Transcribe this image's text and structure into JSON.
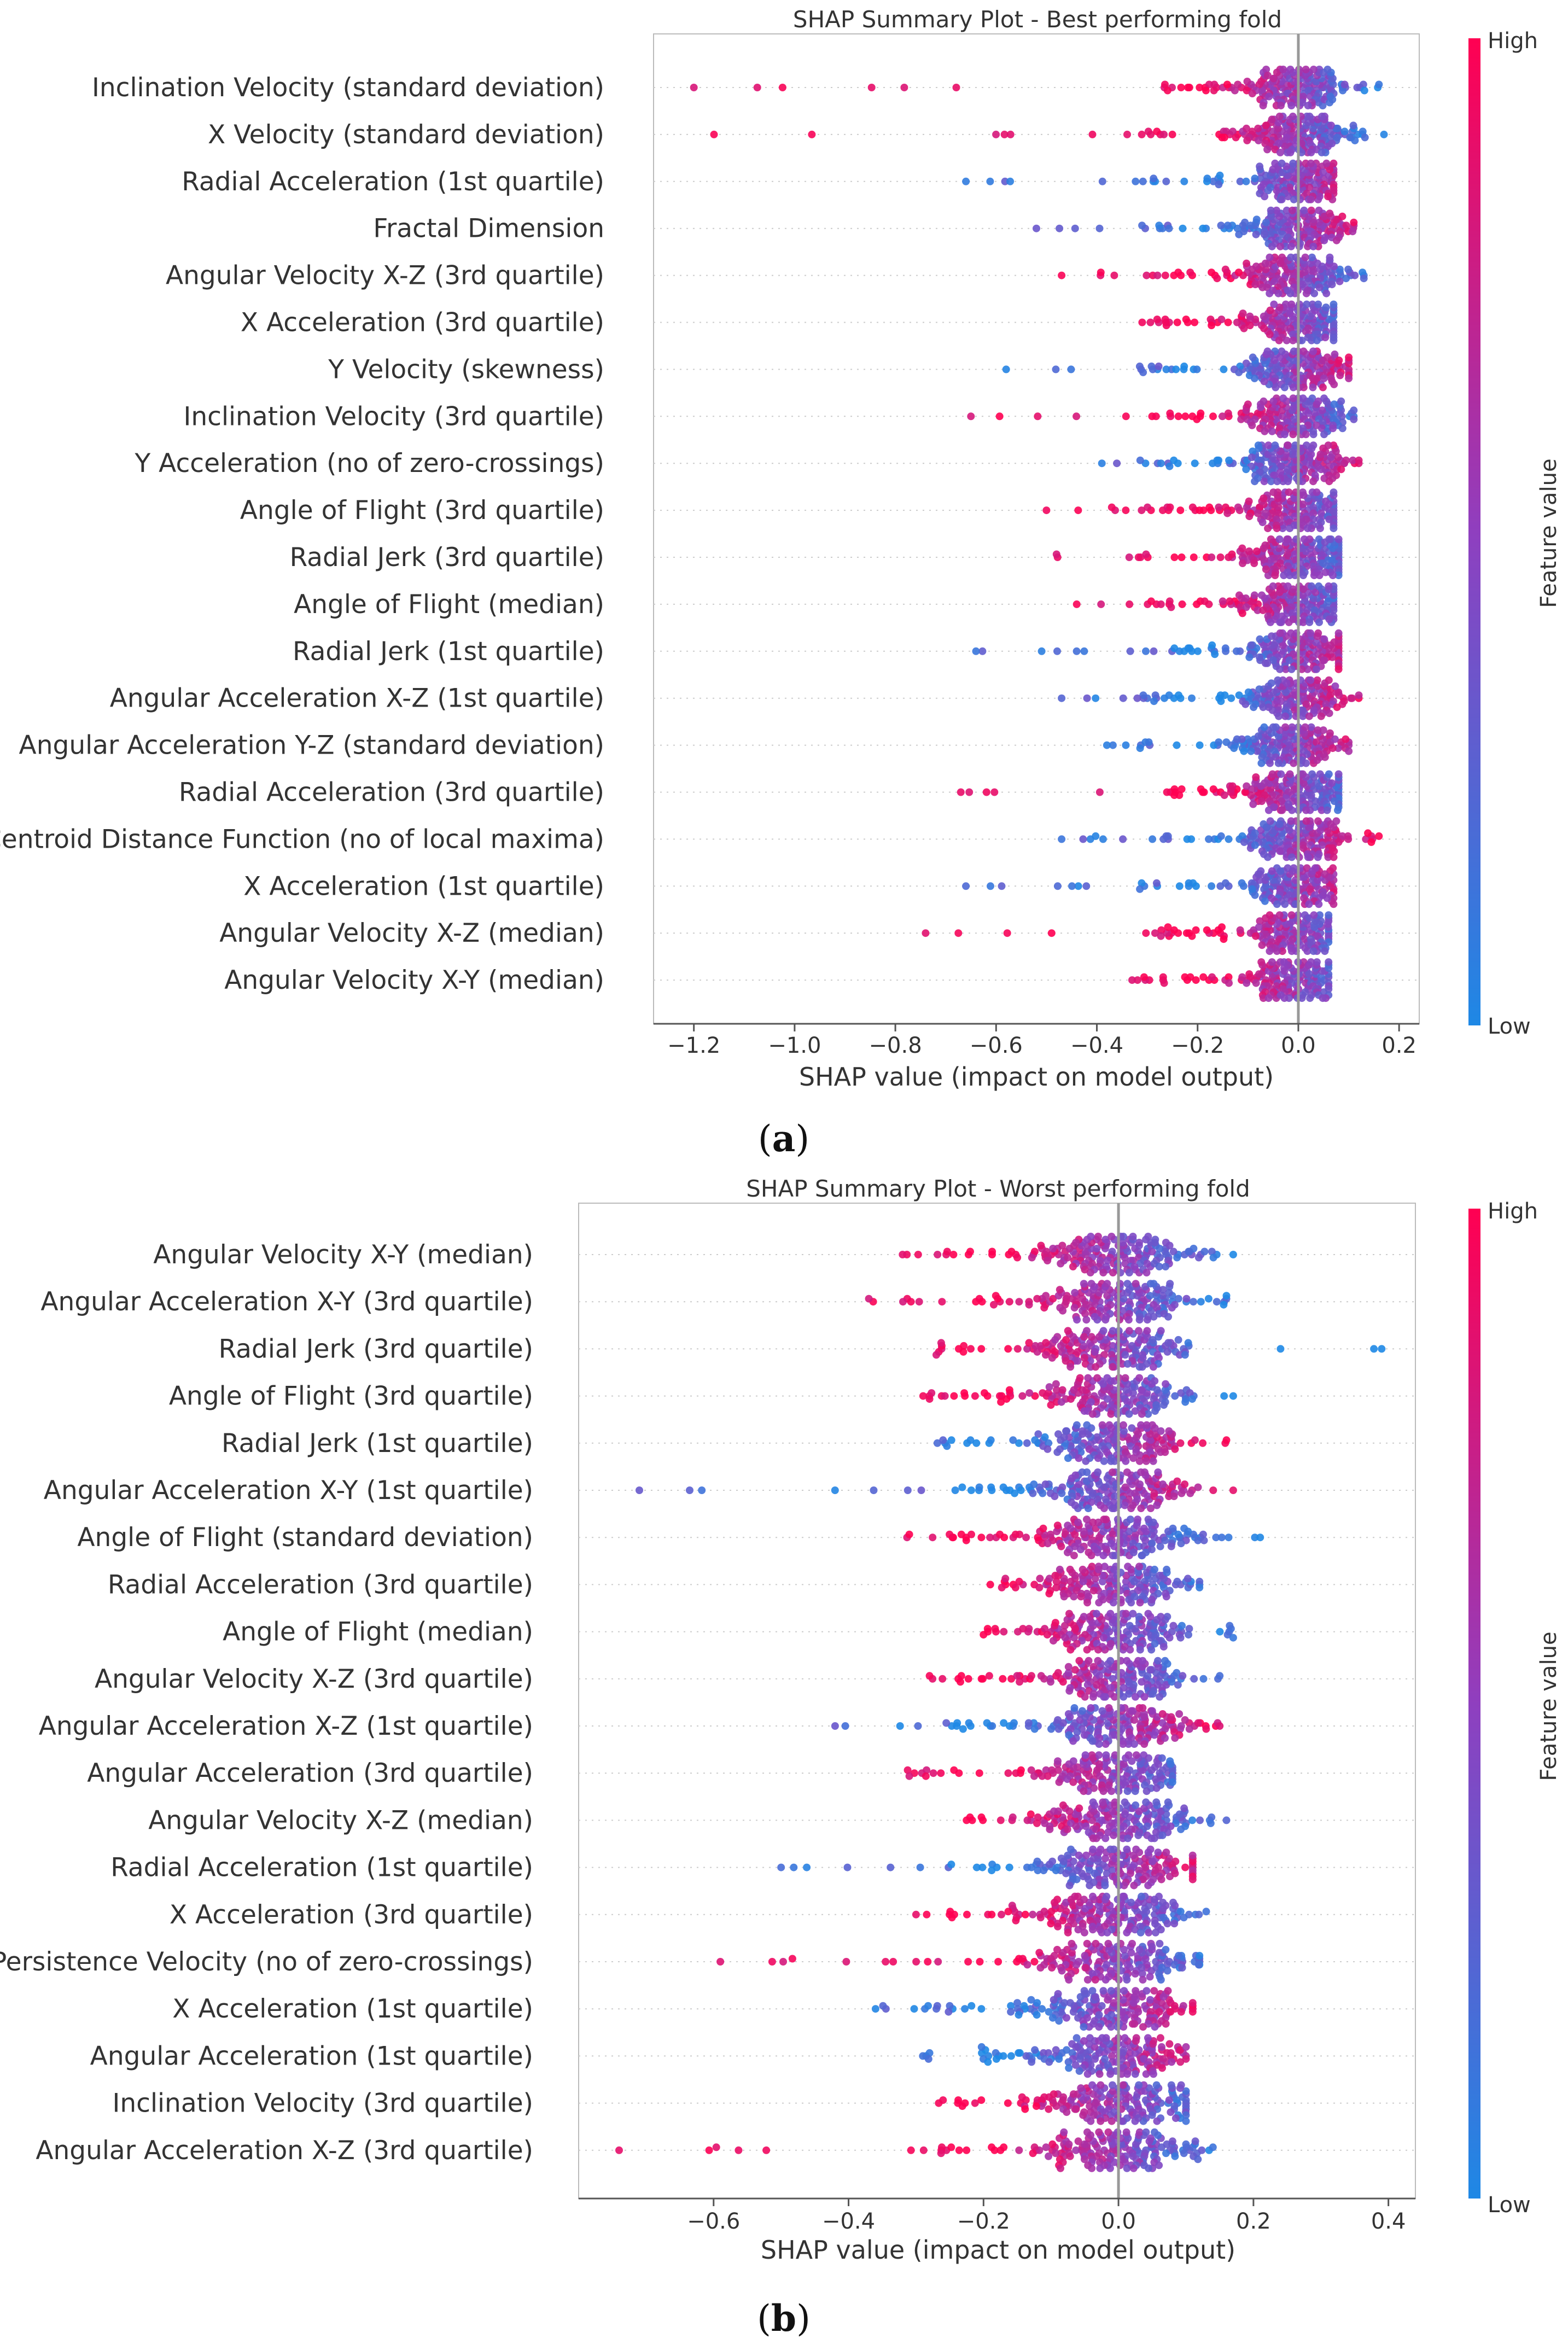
{
  "colors": {
    "low": "#1e88e5",
    "mid": "#8f3fbf",
    "high": "#ff0052",
    "zero_line": "#999999",
    "grid": "#cccccc"
  },
  "colorbar": {
    "high_label": "High",
    "low_label": "Low",
    "axis_label": "Feature value"
  },
  "panels": [
    {
      "caption_open": "(",
      "caption_letter": "a",
      "caption_close": ")",
      "chart_data": {
        "type": "scatter",
        "subtype": "shap-beeswarm",
        "title": "SHAP Summary Plot - Best performing fold",
        "xlabel": "SHAP value (impact on model output)",
        "xlim": [
          -1.28,
          0.24
        ],
        "xticks": [
          -1.2,
          -1.0,
          -0.8,
          -0.6,
          -0.4,
          -0.2,
          0.0,
          0.2
        ],
        "xtick_labels": [
          "−1.2",
          "−1.0",
          "−0.8",
          "−0.6",
          "−0.4",
          "−0.2",
          "0.0",
          "0.2"
        ],
        "features": [
          {
            "name": "Inclination Velocity (standard deviation)",
            "min": -1.2,
            "max": 0.16,
            "spread": 0.05,
            "trend": -1
          },
          {
            "name": "X Velocity (standard deviation)",
            "min": -1.16,
            "max": 0.17,
            "spread": 0.05,
            "trend": -1
          },
          {
            "name": "Radial Acceleration (1st quartile)",
            "min": -0.66,
            "max": 0.07,
            "spread": 0.045,
            "trend": 1
          },
          {
            "name": "Fractal Dimension",
            "min": -0.52,
            "max": 0.11,
            "spread": 0.05,
            "trend": 1
          },
          {
            "name": "Angular Velocity X-Z (3rd quartile)",
            "min": -0.47,
            "max": 0.13,
            "spread": 0.05,
            "trend": -1
          },
          {
            "name": "X Acceleration (3rd quartile)",
            "min": -0.31,
            "max": 0.07,
            "spread": 0.05,
            "trend": -1
          },
          {
            "name": "Y Velocity (skewness)",
            "min": -0.58,
            "max": 0.1,
            "spread": 0.05,
            "trend": 1
          },
          {
            "name": "Inclination Velocity (3rd quartile)",
            "min": -0.65,
            "max": 0.11,
            "spread": 0.05,
            "trend": -1
          },
          {
            "name": "Y Acceleration (no of zero-crossings)",
            "min": -0.39,
            "max": 0.12,
            "spread": 0.05,
            "trend": 1
          },
          {
            "name": "Angle of Flight (3rd quartile)",
            "min": -0.5,
            "max": 0.07,
            "spread": 0.05,
            "trend": -1
          },
          {
            "name": "Radial Jerk (3rd quartile)",
            "min": -0.48,
            "max": 0.08,
            "spread": 0.05,
            "trend": -1
          },
          {
            "name": "Angle of Flight (median)",
            "min": -0.44,
            "max": 0.07,
            "spread": 0.045,
            "trend": -1
          },
          {
            "name": "Radial Jerk (1st quartile)",
            "min": -0.64,
            "max": 0.08,
            "spread": 0.045,
            "trend": 1
          },
          {
            "name": "Angular Acceleration X-Z (1st quartile)",
            "min": -0.47,
            "max": 0.12,
            "spread": 0.045,
            "trend": 1
          },
          {
            "name": "Angular Acceleration Y-Z (standard deviation)",
            "min": -0.38,
            "max": 0.1,
            "spread": 0.05,
            "trend": 1
          },
          {
            "name": "Radial Acceleration (3rd quartile)",
            "min": -0.67,
            "max": 0.08,
            "spread": 0.05,
            "trend": -1
          },
          {
            "name": "Centroid Distance Function (no of local maxima)",
            "min": -0.47,
            "max": 0.16,
            "spread": 0.05,
            "trend": 1
          },
          {
            "name": "X Acceleration (1st quartile)",
            "min": -0.66,
            "max": 0.07,
            "spread": 0.045,
            "trend": 1
          },
          {
            "name": "Angular Velocity X-Z (median)",
            "min": -0.74,
            "max": 0.06,
            "spread": 0.045,
            "trend": -1
          },
          {
            "name": "Angular Velocity X-Y (median)",
            "min": -0.33,
            "max": 0.06,
            "spread": 0.045,
            "trend": -1
          }
        ]
      }
    },
    {
      "caption_open": "(",
      "caption_letter": "b",
      "caption_close": ")",
      "chart_data": {
        "type": "scatter",
        "subtype": "shap-beeswarm",
        "title": "SHAP Summary Plot - Worst performing fold",
        "xlabel": "SHAP value (impact on model output)",
        "xlim": [
          -0.8,
          0.44
        ],
        "xticks": [
          -0.6,
          -0.4,
          -0.2,
          0.0,
          0.2,
          0.4
        ],
        "xtick_labels": [
          "−0.6",
          "−0.4",
          "−0.2",
          "0.0",
          "0.2",
          "0.4"
        ],
        "features": [
          {
            "name": "Angular Velocity X-Y (median)",
            "min": -0.32,
            "max": 0.17,
            "spread": 0.05,
            "trend": -1
          },
          {
            "name": "Angular Acceleration X-Y (3rd quartile)",
            "min": -0.37,
            "max": 0.16,
            "spread": 0.05,
            "trend": -1
          },
          {
            "name": "Radial Jerk (3rd quartile)",
            "min": -0.27,
            "max": 0.39,
            "spread": 0.05,
            "trend": -1
          },
          {
            "name": "Angle of Flight (3rd quartile)",
            "min": -0.28,
            "max": 0.17,
            "spread": 0.05,
            "trend": -1
          },
          {
            "name": "Radial Jerk (1st quartile)",
            "min": -0.26,
            "max": 0.16,
            "spread": 0.05,
            "trend": 1
          },
          {
            "name": "Angular Acceleration X-Y (1st quartile)",
            "min": -0.71,
            "max": 0.17,
            "spread": 0.05,
            "trend": 1
          },
          {
            "name": "Angle of Flight (standard deviation)",
            "min": -0.31,
            "max": 0.21,
            "spread": 0.05,
            "trend": -1
          },
          {
            "name": "Radial Acceleration (3rd quartile)",
            "min": -0.19,
            "max": 0.12,
            "spread": 0.05,
            "trend": -1
          },
          {
            "name": "Angle of Flight (median)",
            "min": -0.2,
            "max": 0.17,
            "spread": 0.05,
            "trend": -1
          },
          {
            "name": "Angular Velocity X-Z (3rd quartile)",
            "min": -0.28,
            "max": 0.15,
            "spread": 0.05,
            "trend": -1
          },
          {
            "name": "Angular Acceleration X-Z (1st quartile)",
            "min": -0.42,
            "max": 0.15,
            "spread": 0.05,
            "trend": 1
          },
          {
            "name": "Angular Acceleration (3rd quartile)",
            "min": -0.31,
            "max": 0.08,
            "spread": 0.045,
            "trend": -1
          },
          {
            "name": "Angular Velocity X-Z (median)",
            "min": -0.22,
            "max": 0.16,
            "spread": 0.05,
            "trend": -1
          },
          {
            "name": "Radial Acceleration (1st quartile)",
            "min": -0.5,
            "max": 0.11,
            "spread": 0.05,
            "trend": 1
          },
          {
            "name": "X Acceleration (3rd quartile)",
            "min": -0.3,
            "max": 0.13,
            "spread": 0.05,
            "trend": -1
          },
          {
            "name": "Persistence Velocity (no of zero-crossings)",
            "min": -0.59,
            "max": 0.12,
            "spread": 0.05,
            "trend": -1
          },
          {
            "name": "X Acceleration (1st quartile)",
            "min": -0.36,
            "max": 0.11,
            "spread": 0.05,
            "trend": 1
          },
          {
            "name": "Angular Acceleration (1st quartile)",
            "min": -0.29,
            "max": 0.1,
            "spread": 0.05,
            "trend": 1
          },
          {
            "name": "Inclination Velocity (3rd quartile)",
            "min": -0.26,
            "max": 0.1,
            "spread": 0.05,
            "trend": -1
          },
          {
            "name": "Angular Acceleration X-Z (3rd quartile)",
            "min": -0.74,
            "max": 0.14,
            "spread": 0.05,
            "trend": -1
          }
        ]
      }
    }
  ]
}
